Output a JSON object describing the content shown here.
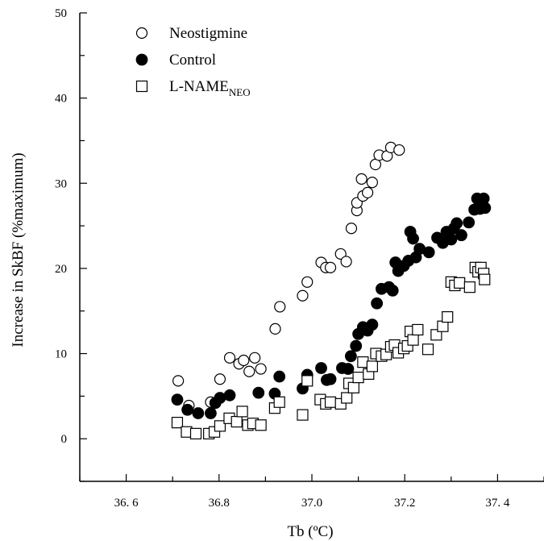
{
  "chart_data": {
    "type": "scatter",
    "xlabel": "Tb (ºC)",
    "ylabel": "Increase in SkBF (%maximum)",
    "xlim": [
      36.5,
      37.5
    ],
    "ylim": [
      -5,
      50
    ],
    "x_ticks": [
      36.6,
      36.8,
      37.0,
      37.2,
      37.4
    ],
    "x_tick_labels": [
      "36. 6",
      "36.8",
      "37.0",
      "37.2",
      "37. 4"
    ],
    "y_ticks": [
      0,
      10,
      20,
      30,
      40,
      50
    ],
    "y_tick_labels": [
      "0",
      "10",
      "20",
      "30",
      "40",
      "50"
    ],
    "legend_position": "top-left",
    "series": [
      {
        "name": "Neostigmine",
        "legend_label": "Neostigmine",
        "legend_subscript": "",
        "marker": "open-circle",
        "points": [
          [
            36.712,
            6.8
          ],
          [
            36.735,
            3.9
          ],
          [
            36.782,
            4.3
          ],
          [
            36.802,
            7.0
          ],
          [
            36.823,
            9.5
          ],
          [
            36.843,
            8.8
          ],
          [
            36.853,
            9.2
          ],
          [
            36.865,
            7.9
          ],
          [
            36.877,
            9.5
          ],
          [
            36.89,
            8.2
          ],
          [
            36.921,
            12.9
          ],
          [
            36.931,
            15.5
          ],
          [
            36.98,
            16.8
          ],
          [
            36.99,
            18.4
          ],
          [
            37.02,
            20.7
          ],
          [
            37.03,
            20.1
          ],
          [
            37.04,
            20.1
          ],
          [
            37.062,
            21.7
          ],
          [
            37.074,
            20.8
          ],
          [
            37.085,
            24.7
          ],
          [
            37.097,
            26.8
          ],
          [
            37.097,
            27.7
          ],
          [
            37.107,
            30.5
          ],
          [
            37.11,
            28.5
          ],
          [
            37.12,
            28.9
          ],
          [
            37.13,
            30.1
          ],
          [
            37.137,
            32.2
          ],
          [
            37.145,
            33.3
          ],
          [
            37.162,
            33.2
          ],
          [
            37.17,
            34.2
          ],
          [
            37.188,
            33.9
          ]
        ]
      },
      {
        "name": "Control",
        "legend_label": "Control",
        "legend_subscript": "",
        "marker": "filled-circle",
        "points": [
          [
            36.71,
            4.6
          ],
          [
            36.732,
            3.4
          ],
          [
            36.755,
            3.0
          ],
          [
            36.782,
            3.0
          ],
          [
            36.792,
            4.2
          ],
          [
            36.802,
            4.8
          ],
          [
            36.823,
            5.1
          ],
          [
            36.885,
            5.4
          ],
          [
            36.92,
            5.3
          ],
          [
            36.93,
            7.3
          ],
          [
            36.98,
            5.9
          ],
          [
            36.99,
            7.5
          ],
          [
            37.02,
            8.3
          ],
          [
            37.032,
            6.9
          ],
          [
            37.04,
            7.0
          ],
          [
            37.065,
            8.3
          ],
          [
            37.078,
            8.2
          ],
          [
            37.084,
            9.7
          ],
          [
            37.095,
            10.9
          ],
          [
            37.1,
            12.3
          ],
          [
            37.11,
            13.1
          ],
          [
            37.12,
            12.7
          ],
          [
            37.13,
            13.4
          ],
          [
            37.14,
            15.9
          ],
          [
            37.15,
            17.6
          ],
          [
            37.166,
            17.8
          ],
          [
            37.174,
            17.4
          ],
          [
            37.18,
            20.7
          ],
          [
            37.186,
            19.7
          ],
          [
            37.198,
            20.3
          ],
          [
            37.208,
            20.9
          ],
          [
            37.212,
            24.3
          ],
          [
            37.218,
            23.5
          ],
          [
            37.224,
            21.3
          ],
          [
            37.232,
            22.3
          ],
          [
            37.252,
            21.9
          ],
          [
            37.27,
            23.6
          ],
          [
            37.282,
            23.0
          ],
          [
            37.29,
            24.3
          ],
          [
            37.3,
            23.4
          ],
          [
            37.306,
            24.7
          ],
          [
            37.312,
            25.3
          ],
          [
            37.322,
            23.9
          ],
          [
            37.338,
            25.4
          ],
          [
            37.35,
            26.9
          ],
          [
            37.356,
            28.2
          ],
          [
            37.362,
            27.0
          ],
          [
            37.37,
            28.2
          ],
          [
            37.373,
            27.1
          ]
        ]
      },
      {
        "name": "L-NAMENEO",
        "legend_label": "L-NAME",
        "legend_subscript": "NEO",
        "marker": "open-square",
        "points": [
          [
            36.71,
            1.9
          ],
          [
            36.73,
            0.8
          ],
          [
            36.75,
            0.6
          ],
          [
            36.778,
            0.6
          ],
          [
            36.79,
            0.8
          ],
          [
            36.802,
            1.5
          ],
          [
            36.822,
            2.4
          ],
          [
            36.838,
            2.0
          ],
          [
            36.85,
            3.2
          ],
          [
            36.862,
            1.6
          ],
          [
            36.873,
            1.8
          ],
          [
            36.89,
            1.6
          ],
          [
            36.92,
            3.6
          ],
          [
            36.93,
            4.3
          ],
          [
            36.98,
            2.8
          ],
          [
            36.99,
            6.8
          ],
          [
            37.018,
            4.6
          ],
          [
            37.03,
            4.1
          ],
          [
            37.04,
            4.3
          ],
          [
            37.062,
            4.1
          ],
          [
            37.075,
            4.8
          ],
          [
            37.08,
            6.5
          ],
          [
            37.09,
            6.0
          ],
          [
            37.1,
            7.2
          ],
          [
            37.11,
            9.0
          ],
          [
            37.122,
            7.6
          ],
          [
            37.13,
            8.5
          ],
          [
            37.138,
            10.0
          ],
          [
            37.15,
            9.7
          ],
          [
            37.16,
            9.9
          ],
          [
            37.17,
            10.8
          ],
          [
            37.178,
            11.0
          ],
          [
            37.186,
            10.1
          ],
          [
            37.198,
            10.6
          ],
          [
            37.206,
            10.9
          ],
          [
            37.212,
            12.6
          ],
          [
            37.218,
            11.6
          ],
          [
            37.228,
            12.8
          ],
          [
            37.25,
            10.5
          ],
          [
            37.268,
            12.2
          ],
          [
            37.282,
            13.2
          ],
          [
            37.292,
            14.3
          ],
          [
            37.3,
            18.4
          ],
          [
            37.308,
            18.0
          ],
          [
            37.318,
            18.3
          ],
          [
            37.34,
            17.8
          ],
          [
            37.352,
            20.1
          ],
          [
            37.358,
            19.6
          ],
          [
            37.364,
            20.1
          ],
          [
            37.37,
            19.4
          ],
          [
            37.372,
            18.7
          ]
        ]
      }
    ]
  }
}
